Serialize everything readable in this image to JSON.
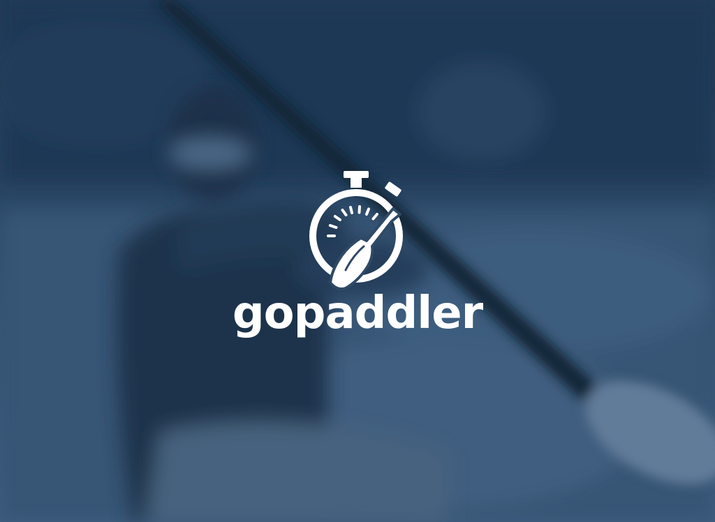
{
  "brand": {
    "name": "gopaddler",
    "logo_icon": "stopwatch-paddle-icon"
  },
  "background": {
    "scene": "kayaker-paddling-photo",
    "tint_color": "#2f4a66"
  },
  "colors": {
    "logo": "#ffffff"
  }
}
